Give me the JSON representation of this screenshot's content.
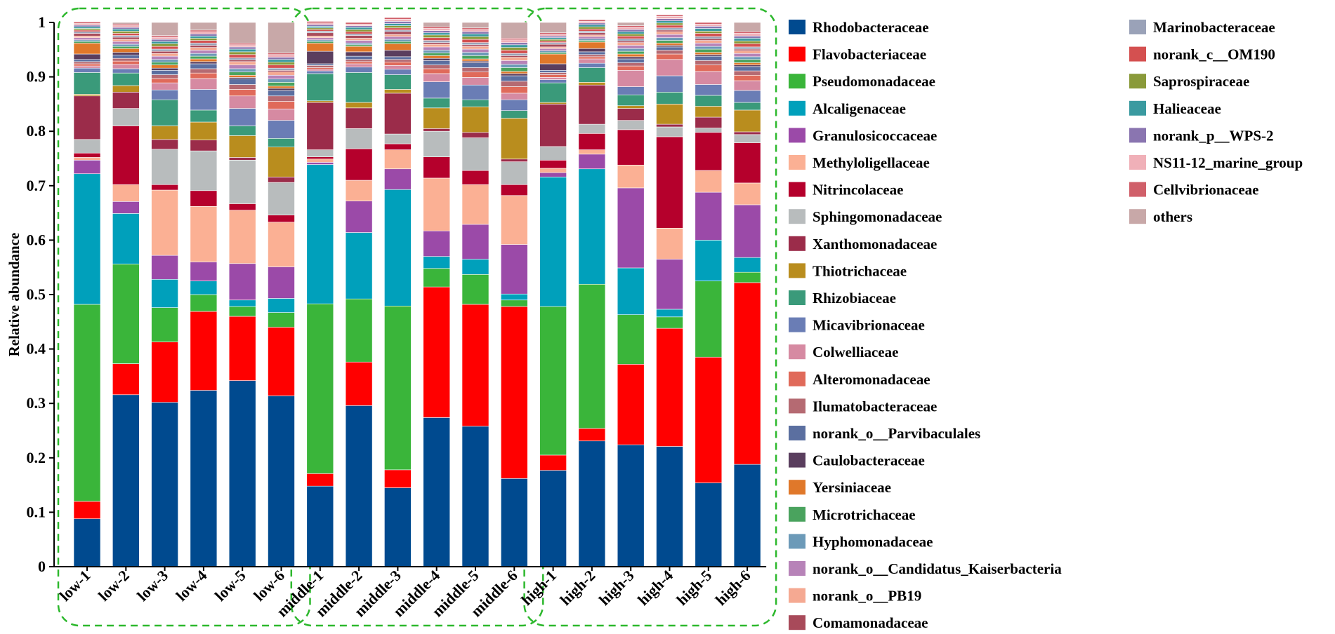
{
  "chart_data": {
    "type": "bar",
    "stacked": true,
    "title": "",
    "xlabel": "",
    "ylabel": "Relative abundance",
    "ylim": [
      0,
      1
    ],
    "yticks": [
      "0",
      "0.1",
      "0.2",
      "0.3",
      "0.4",
      "0.5",
      "0.6",
      "0.7",
      "0.8",
      "0.9",
      "1"
    ],
    "categories": [
      "low-1",
      "low-2",
      "low-3",
      "low-4",
      "low-5",
      "low-6",
      "middle-1",
      "middle-2",
      "middle-3",
      "middle-4",
      "middle-5",
      "middle-6",
      "high-1",
      "high-2",
      "high-3",
      "high-4",
      "high-5",
      "high-6"
    ],
    "groups": [
      {
        "name": "low",
        "members": [
          "low-1",
          "low-2",
          "low-3",
          "low-4",
          "low-5",
          "low-6"
        ]
      },
      {
        "name": "middle",
        "members": [
          "middle-1",
          "middle-2",
          "middle-3",
          "middle-4",
          "middle-5",
          "middle-6"
        ]
      },
      {
        "name": "high",
        "members": [
          "high-1",
          "high-2",
          "high-3",
          "high-4",
          "high-5",
          "high-6"
        ]
      }
    ],
    "series": [
      {
        "name": "Rhodobacteraceae",
        "color": "#004a8f",
        "values": [
          0.088,
          0.316,
          0.302,
          0.324,
          0.342,
          0.314,
          0.148,
          0.296,
          0.145,
          0.274,
          0.258,
          0.162,
          0.177,
          0.231,
          0.224,
          0.221,
          0.154,
          0.188
        ]
      },
      {
        "name": "Flavobacteriaceae",
        "color": "#ff0000",
        "values": [
          0.032,
          0.057,
          0.111,
          0.145,
          0.118,
          0.126,
          0.023,
          0.08,
          0.033,
          0.24,
          0.224,
          0.316,
          0.028,
          0.023,
          0.148,
          0.217,
          0.231,
          0.334
        ]
      },
      {
        "name": "Pseudomonadaceae",
        "color": "#3ab53a",
        "values": [
          0.362,
          0.183,
          0.063,
          0.031,
          0.018,
          0.027,
          0.312,
          0.116,
          0.301,
          0.034,
          0.055,
          0.012,
          0.273,
          0.265,
          0.091,
          0.021,
          0.14,
          0.019
        ]
      },
      {
        "name": "Alcaligenaceae",
        "color": "#00a0bb",
        "values": [
          0.24,
          0.093,
          0.052,
          0.025,
          0.012,
          0.026,
          0.256,
          0.122,
          0.214,
          0.022,
          0.028,
          0.011,
          0.238,
          0.212,
          0.086,
          0.014,
          0.075,
          0.027
        ]
      },
      {
        "name": "Granulosicoccaceae",
        "color": "#9b4aa8",
        "values": [
          0.025,
          0.022,
          0.044,
          0.035,
          0.067,
          0.058,
          0.004,
          0.058,
          0.038,
          0.047,
          0.064,
          0.091,
          0.008,
          0.027,
          0.147,
          0.092,
          0.088,
          0.097
        ]
      },
      {
        "name": "Methyloligellaceae",
        "color": "#fbb094",
        "values": [
          0.005,
          0.031,
          0.12,
          0.102,
          0.098,
          0.082,
          0.006,
          0.038,
          0.035,
          0.097,
          0.073,
          0.09,
          0.008,
          0.008,
          0.042,
          0.057,
          0.04,
          0.04
        ]
      },
      {
        "name": "Nitrincolaceae",
        "color": "#b5002c",
        "values": [
          0.008,
          0.108,
          0.01,
          0.029,
          0.012,
          0.013,
          0.004,
          0.058,
          0.011,
          0.039,
          0.026,
          0.02,
          0.015,
          0.03,
          0.065,
          0.168,
          0.07,
          0.074
        ]
      },
      {
        "name": "Sphingomonadaceae",
        "color": "#b8bcbd",
        "values": [
          0.025,
          0.032,
          0.065,
          0.073,
          0.08,
          0.06,
          0.013,
          0.037,
          0.018,
          0.047,
          0.06,
          0.042,
          0.025,
          0.017,
          0.017,
          0.018,
          0.008,
          0.015
        ]
      },
      {
        "name": "Xanthomonadaceae",
        "color": "#9b2c4a",
        "values": [
          0.08,
          0.03,
          0.018,
          0.02,
          0.005,
          0.01,
          0.087,
          0.038,
          0.075,
          0.005,
          0.01,
          0.005,
          0.078,
          0.072,
          0.022,
          0.005,
          0.02,
          0.005
        ]
      },
      {
        "name": "Thiotrichaceae",
        "color": "#b98d1e",
        "values": [
          0.003,
          0.012,
          0.025,
          0.033,
          0.04,
          0.055,
          0.003,
          0.01,
          0.007,
          0.038,
          0.047,
          0.075,
          0.003,
          0.005,
          0.005,
          0.037,
          0.02,
          0.04
        ]
      },
      {
        "name": "Rhizobiaceae",
        "color": "#3a9a7a",
        "values": [
          0.04,
          0.023,
          0.048,
          0.022,
          0.018,
          0.016,
          0.05,
          0.055,
          0.027,
          0.018,
          0.013,
          0.014,
          0.036,
          0.027,
          0.02,
          0.022,
          0.02,
          0.014
        ]
      },
      {
        "name": "Micavibrionaceae",
        "color": "#6a7db5",
        "values": [
          0.008,
          0.008,
          0.018,
          0.038,
          0.032,
          0.033,
          0.005,
          0.01,
          0.01,
          0.03,
          0.027,
          0.02,
          0.006,
          0.008,
          0.015,
          0.03,
          0.02,
          0.022
        ]
      },
      {
        "name": "Colwelliaceae",
        "color": "#d68aa2",
        "values": [
          0.004,
          0.008,
          0.013,
          0.02,
          0.023,
          0.021,
          0.003,
          0.006,
          0.007,
          0.015,
          0.014,
          0.012,
          0.004,
          0.008,
          0.03,
          0.03,
          0.024,
          0.018
        ]
      },
      {
        "name": "Alteromonadaceae",
        "color": "#e06a5a",
        "values": [
          0.004,
          0.006,
          0.008,
          0.01,
          0.012,
          0.014,
          0.003,
          0.004,
          0.006,
          0.009,
          0.01,
          0.012,
          0.005,
          0.004,
          0.008,
          0.01,
          0.012,
          0.01
        ]
      },
      {
        "name": "Ilumatobacteraceae",
        "color": "#b56a72",
        "values": [
          0.004,
          0.005,
          0.007,
          0.008,
          0.009,
          0.01,
          0.004,
          0.004,
          0.005,
          0.007,
          0.008,
          0.01,
          0.004,
          0.004,
          0.006,
          0.007,
          0.008,
          0.008
        ]
      },
      {
        "name": "norank_o__Parvibaculales",
        "color": "#5b6fa0",
        "values": [
          0.004,
          0.006,
          0.008,
          0.009,
          0.01,
          0.01,
          0.003,
          0.006,
          0.005,
          0.008,
          0.009,
          0.01,
          0.004,
          0.005,
          0.007,
          0.006,
          0.008,
          0.008
        ]
      },
      {
        "name": "Caulobacteraceae",
        "color": "#5a3e5e",
        "values": [
          0.01,
          0.005,
          0.004,
          0.004,
          0.003,
          0.004,
          0.023,
          0.008,
          0.012,
          0.004,
          0.003,
          0.004,
          0.012,
          0.006,
          0.004,
          0.003,
          0.003,
          0.003
        ]
      },
      {
        "name": "Yersiniaceae",
        "color": "#e0782a",
        "values": [
          0.02,
          0.007,
          0.006,
          0.005,
          0.004,
          0.004,
          0.015,
          0.01,
          0.012,
          0.005,
          0.004,
          0.004,
          0.018,
          0.012,
          0.005,
          0.004,
          0.004,
          0.004
        ]
      },
      {
        "name": "Microtrichaceae",
        "color": "#4aa35e",
        "values": [
          0.003,
          0.004,
          0.005,
          0.005,
          0.006,
          0.007,
          0.003,
          0.003,
          0.004,
          0.005,
          0.006,
          0.007,
          0.003,
          0.003,
          0.005,
          0.005,
          0.006,
          0.006
        ]
      },
      {
        "name": "Hyphomonadaceae",
        "color": "#6c9ab8",
        "values": [
          0.003,
          0.004,
          0.005,
          0.005,
          0.006,
          0.006,
          0.003,
          0.003,
          0.004,
          0.005,
          0.006,
          0.006,
          0.003,
          0.003,
          0.005,
          0.005,
          0.005,
          0.005
        ]
      },
      {
        "name": "norank_o__Candidatus_Kaiserbacteria",
        "color": "#b783b8",
        "values": [
          0.004,
          0.005,
          0.006,
          0.006,
          0.007,
          0.007,
          0.004,
          0.005,
          0.005,
          0.006,
          0.006,
          0.007,
          0.004,
          0.004,
          0.006,
          0.006,
          0.006,
          0.006
        ]
      },
      {
        "name": "norank_o__PB19",
        "color": "#f5a992",
        "values": [
          0.003,
          0.004,
          0.005,
          0.005,
          0.006,
          0.006,
          0.003,
          0.004,
          0.004,
          0.005,
          0.005,
          0.006,
          0.003,
          0.003,
          0.005,
          0.005,
          0.005,
          0.005
        ]
      },
      {
        "name": "Comamonadaceae",
        "color": "#a84a5a",
        "values": [
          0.005,
          0.004,
          0.004,
          0.004,
          0.003,
          0.003,
          0.006,
          0.005,
          0.005,
          0.003,
          0.003,
          0.003,
          0.005,
          0.004,
          0.003,
          0.003,
          0.003,
          0.003
        ]
      },
      {
        "name": "Marinobacteraceae",
        "color": "#9aa2b8",
        "values": [
          0.003,
          0.003,
          0.004,
          0.004,
          0.004,
          0.004,
          0.003,
          0.003,
          0.003,
          0.004,
          0.004,
          0.004,
          0.003,
          0.003,
          0.004,
          0.004,
          0.004,
          0.004
        ]
      },
      {
        "name": "norank_c__OM190",
        "color": "#d45050",
        "values": [
          0.003,
          0.004,
          0.005,
          0.005,
          0.006,
          0.006,
          0.003,
          0.004,
          0.004,
          0.005,
          0.006,
          0.006,
          0.003,
          0.004,
          0.005,
          0.005,
          0.006,
          0.006
        ]
      },
      {
        "name": "Saprospiraceae",
        "color": "#8a9a3a",
        "values": [
          0.003,
          0.004,
          0.005,
          0.004,
          0.005,
          0.005,
          0.003,
          0.004,
          0.004,
          0.005,
          0.005,
          0.005,
          0.003,
          0.004,
          0.004,
          0.004,
          0.004,
          0.005
        ]
      },
      {
        "name": "Halieaceae",
        "color": "#3a9aa0",
        "values": [
          0.003,
          0.004,
          0.004,
          0.004,
          0.005,
          0.005,
          0.003,
          0.004,
          0.004,
          0.004,
          0.005,
          0.005,
          0.003,
          0.004,
          0.004,
          0.004,
          0.005,
          0.005
        ]
      },
      {
        "name": "norank_p__WPS-2",
        "color": "#8a75b0",
        "values": [
          0.003,
          0.003,
          0.004,
          0.004,
          0.004,
          0.004,
          0.003,
          0.003,
          0.004,
          0.004,
          0.004,
          0.004,
          0.003,
          0.003,
          0.004,
          0.004,
          0.004,
          0.004
        ]
      },
      {
        "name": "NS11-12_marine_group",
        "color": "#f0b0b8",
        "values": [
          0.003,
          0.003,
          0.004,
          0.004,
          0.004,
          0.005,
          0.003,
          0.003,
          0.004,
          0.004,
          0.004,
          0.005,
          0.003,
          0.003,
          0.004,
          0.004,
          0.004,
          0.005
        ]
      },
      {
        "name": "Cellvibrionaceae",
        "color": "#d0606a",
        "values": [
          0.003,
          0.003,
          0.003,
          0.003,
          0.003,
          0.003,
          0.003,
          0.003,
          0.003,
          0.003,
          0.003,
          0.003,
          0.003,
          0.003,
          0.003,
          0.003,
          0.003,
          0.003
        ]
      },
      {
        "name": "others",
        "color": "#c8a8a8",
        "values": null
      }
    ]
  }
}
